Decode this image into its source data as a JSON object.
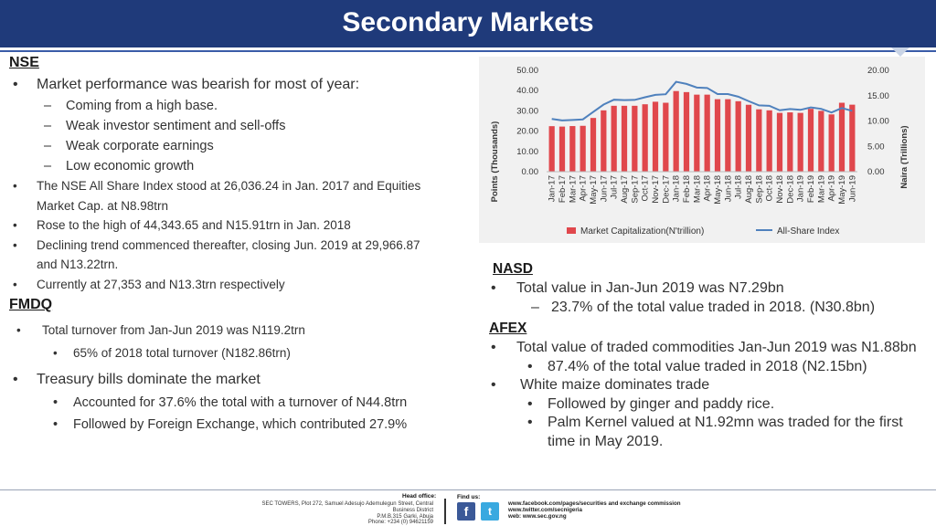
{
  "header": {
    "title": "Secondary Markets"
  },
  "left": {
    "nse_heading": "NSE",
    "nse_items": [
      "Market performance was bearish for most of year:",
      "Coming from a high base.",
      "Weak investor sentiment and sell-offs",
      "Weak corporate earnings",
      "Low economic growth",
      "The NSE All Share Index stood at 26,036.24  in Jan. 2017 and Equities Market Cap. at N8.98trn",
      "Rose to the high of 44,343.65 and N15.91trn in Jan. 2018",
      "Declining trend commenced thereafter, closing Jun. 2019 at 29,966.87 and N13.22trn.",
      "Currently at 27,353 and N13.3trn respectively"
    ],
    "fmdq_heading": "FMDQ",
    "fmdq_items": [
      "Total turnover from Jan-Jun 2019 was N119.2trn",
      "65% of 2018 total turnover (N182.86trn)",
      "Treasury bills dominate the market",
      "Accounted for 37.6% the total with a turnover of N44.8trn",
      "Followed by Foreign Exchange, which contributed 27.9%"
    ]
  },
  "right": {
    "nasd_heading": "NASD",
    "nasd_items": [
      "Total value in Jan-Jun 2019 was N7.29bn",
      "23.7% of the total value traded in 2018. (N30.8bn)"
    ],
    "afex_heading": "AFEX",
    "afex_items": [
      "Total value of traded commodities Jan-Jun 2019 was N1.88bn",
      "87.4% of the total value traded in 2018 (N2.15bn)",
      "White maize dominates trade",
      "Followed by ginger and paddy rice.",
      "Palm Kernel valued at N1.92mn was traded for the first time in May 2019."
    ]
  },
  "chart_data": {
    "type": "bar",
    "categories": [
      "Jan-17",
      "Feb-17",
      "Mar-17",
      "Apr-17",
      "May-17",
      "Jun-17",
      "Jul-17",
      "Aug-17",
      "Sep-17",
      "Oct-17",
      "Nov-17",
      "Dec-17",
      "Jan-18",
      "Feb-18",
      "Mar-18",
      "Apr-18",
      "May-18",
      "Jun-18",
      "Jul-18",
      "Aug-18",
      "Sep-18",
      "Oct-18",
      "Nov-18",
      "Dec-18",
      "Jan-19",
      "Feb-19",
      "Mar-19",
      "Apr-19",
      "May-19",
      "Jun-19"
    ],
    "series": [
      {
        "name": "Market Capitalization(N'trillion)",
        "type": "bar",
        "axis": "right",
        "color": "#e0474c",
        "values": [
          8.98,
          8.9,
          9.0,
          9.05,
          10.6,
          12.1,
          13.0,
          13.0,
          13.0,
          13.3,
          13.8,
          13.6,
          15.91,
          15.7,
          15.2,
          15.2,
          14.3,
          14.3,
          13.9,
          13.2,
          12.3,
          12.1,
          11.6,
          11.7,
          11.6,
          12.4,
          12.0,
          11.3,
          13.6,
          13.22
        ]
      },
      {
        "name": "All-Share Index",
        "type": "line",
        "axis": "left",
        "color": "#4f81bd",
        "values": [
          26036.24,
          25300,
          25500,
          25800,
          29500,
          33100,
          35500,
          35300,
          35400,
          36700,
          37900,
          38200,
          44343.65,
          43300,
          41500,
          41300,
          38300,
          38300,
          37000,
          34800,
          32700,
          32500,
          30300,
          30900,
          30500,
          31700,
          31000,
          29200,
          31400,
          29966.87
        ]
      }
    ],
    "ylabel": "Points (Thousands)",
    "ylabel_right": "Naira (Trillions)",
    "left_ticks": [
      "50.00",
      "40.00",
      "30.00",
      "20.00",
      "10.00",
      "0.00"
    ],
    "right_ticks": [
      "20.00",
      "15.00",
      "10.00",
      "5.00",
      "0.00"
    ],
    "ylim": [
      0,
      50
    ],
    "ylim_right": [
      0,
      20
    ],
    "legend_position": "bottom"
  },
  "footer": {
    "head_office_label": "Head office:",
    "address": [
      "SEC TOWERS, Plot 272, Samuel Adesujo Ademulegun Street, Central",
      "Business District",
      "P.M.B.315 Garki, Abuja",
      "Phone: +234 (0) 94621159"
    ],
    "find_us_label": "Find us:",
    "facebook_glyph": "f",
    "twitter_glyph": "t",
    "links": [
      "www.facebook.com/pages/securities and exchange commission",
      "www.twitter.com/secnigeria",
      "web: www.sec.gov.ng"
    ]
  }
}
